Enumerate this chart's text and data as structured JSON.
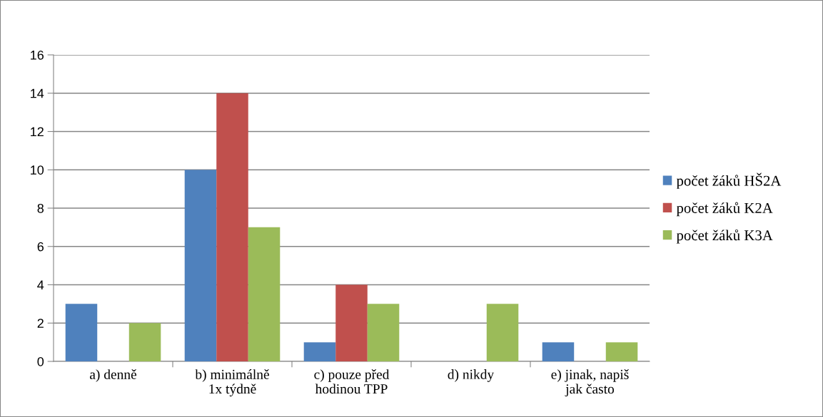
{
  "chart_data": {
    "type": "bar",
    "categories": [
      "a) denně",
      "b) minimálně 1x týdně",
      "c) pouze před hodinou TPP",
      "d) nikdy",
      "e) jinak, napiš jak často"
    ],
    "series": [
      {
        "name": "počet žáků HŠ2A",
        "color": "#4f81bd",
        "values": [
          3,
          10,
          1,
          0,
          1
        ]
      },
      {
        "name": "počet žáků K2A",
        "color": "#c0504d",
        "values": [
          0,
          14,
          4,
          0,
          0
        ]
      },
      {
        "name": "počet žáků K3A",
        "color": "#9bbb59",
        "values": [
          2,
          7,
          3,
          3,
          1
        ]
      }
    ],
    "ylim": [
      0,
      16
    ],
    "yticks": [
      0,
      2,
      4,
      6,
      8,
      10,
      12,
      14,
      16
    ],
    "grid": "y",
    "legend": "right"
  }
}
